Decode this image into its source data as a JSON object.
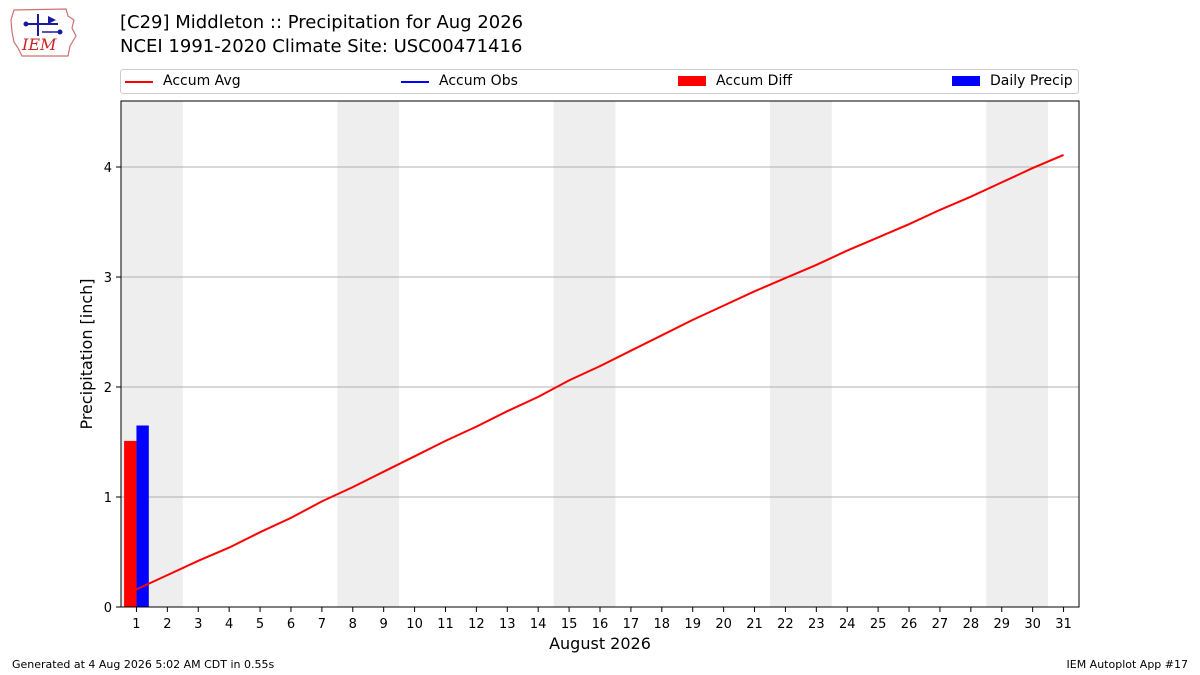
{
  "header": {
    "logo_text": "IEM",
    "title_line1": "[C29] Middleton :: Precipitation for Aug 2026",
    "title_line2": "NCEI 1991-2020 Climate Site: USC00471416"
  },
  "legend": {
    "items": [
      {
        "label": "Accum Avg",
        "kind": "line",
        "color": "#ff0000"
      },
      {
        "label": "Accum Obs",
        "kind": "line",
        "color": "#0000ff"
      },
      {
        "label": "Accum Diff",
        "kind": "patch",
        "color": "#ff0000"
      },
      {
        "label": "Daily Precip",
        "kind": "patch",
        "color": "#0000ff"
      }
    ]
  },
  "chart_data": {
    "type": "line",
    "xlabel": "August 2026",
    "ylabel": "Precipitation [inch]",
    "xlim": [
      0.5,
      31.5
    ],
    "ylim": [
      0,
      4.6
    ],
    "x_ticks": [
      1,
      2,
      3,
      4,
      5,
      6,
      7,
      8,
      9,
      10,
      11,
      12,
      13,
      14,
      15,
      16,
      17,
      18,
      19,
      20,
      21,
      22,
      23,
      24,
      25,
      26,
      27,
      28,
      29,
      30,
      31
    ],
    "y_ticks": [
      0,
      1,
      2,
      3,
      4
    ],
    "grid": "y",
    "legend_position": "top",
    "weekend_shading": [
      [
        1,
        2
      ],
      [
        8,
        9
      ],
      [
        15,
        16
      ],
      [
        22,
        23
      ],
      [
        29,
        30
      ]
    ],
    "series": [
      {
        "name": "Accum Avg",
        "type": "line",
        "color": "#ff0000",
        "x": [
          1,
          2,
          3,
          4,
          5,
          6,
          7,
          8,
          9,
          10,
          11,
          12,
          13,
          14,
          15,
          16,
          17,
          18,
          19,
          20,
          21,
          22,
          23,
          24,
          25,
          26,
          27,
          28,
          29,
          30,
          31
        ],
        "values": [
          0.16,
          0.29,
          0.42,
          0.54,
          0.68,
          0.81,
          0.96,
          1.09,
          1.23,
          1.37,
          1.51,
          1.64,
          1.78,
          1.91,
          2.06,
          2.19,
          2.33,
          2.47,
          2.61,
          2.74,
          2.87,
          2.99,
          3.11,
          3.24,
          3.36,
          3.48,
          3.61,
          3.73,
          3.86,
          3.99,
          4.11
        ]
      },
      {
        "name": "Accum Diff",
        "type": "bar",
        "color": "#ff0000",
        "x": [
          1
        ],
        "values": [
          1.51
        ]
      },
      {
        "name": "Daily Precip",
        "type": "bar",
        "color": "#0000ff",
        "x": [
          1
        ],
        "values": [
          1.65
        ]
      }
    ]
  },
  "footer": {
    "left": "Generated at 4 Aug 2026 5:02 AM CDT in 0.55s",
    "right": "IEM Autoplot App #17"
  }
}
